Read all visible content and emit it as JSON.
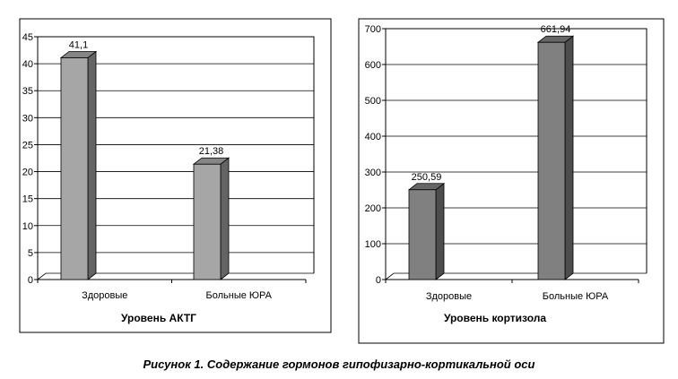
{
  "figure": {
    "caption": "Рисунок 1. Содержание гормонов гипофизарно-кортикальной оси"
  },
  "chart_data": [
    {
      "type": "bar",
      "title": "Уровень АКТГ",
      "xlabel": "",
      "ylabel": "",
      "categories": [
        "Здоровые",
        "Больные ЮРА"
      ],
      "values": [
        41.1,
        21.38
      ],
      "value_labels": [
        "41,1",
        "21,38"
      ],
      "ylim": [
        0,
        45
      ],
      "yticks": [
        0,
        5,
        10,
        15,
        20,
        25,
        30,
        35,
        40,
        45
      ],
      "grid": true,
      "bar_color": "#a6a6a6",
      "style": "3d-column"
    },
    {
      "type": "bar",
      "title": "Уровень кортизола",
      "xlabel": "",
      "ylabel": "",
      "categories": [
        "Здоровые",
        "Больные ЮРА"
      ],
      "values": [
        250.59,
        661.94
      ],
      "value_labels": [
        "250,59",
        "661,94"
      ],
      "ylim": [
        0,
        700
      ],
      "yticks": [
        0,
        100,
        200,
        300,
        400,
        500,
        600,
        700
      ],
      "grid": true,
      "bar_color": "#808080",
      "style": "3d-column"
    }
  ]
}
